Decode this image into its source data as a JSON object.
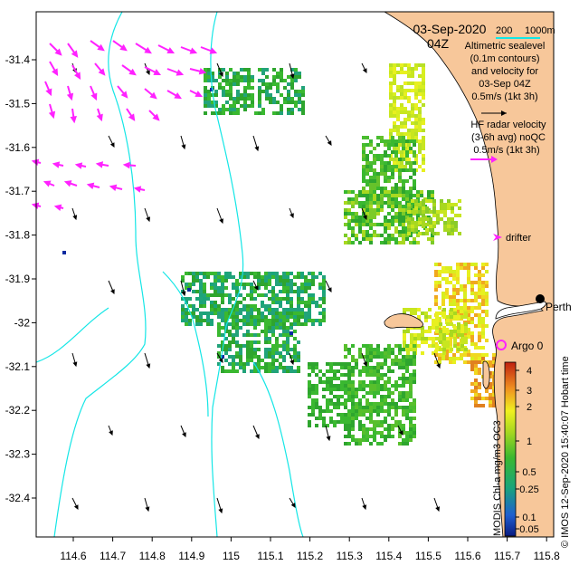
{
  "map": {
    "date": "03-Sep-2020",
    "time": "04Z",
    "bathymetry_legend": [
      "200",
      "1000m"
    ],
    "altimetry_text": [
      "Altimetric sealevel",
      "(0.1m contours)",
      "and velocity for",
      "03-Sep 04Z",
      "0.5m/s (1kt 3h)"
    ],
    "hf_radar_text": [
      "HF radar velocity",
      "(3-6h avg) noQC",
      "0.5m/s (1kt 3h)"
    ],
    "drifter_label": "drifter",
    "city_label": "Perth",
    "argo_label": "Argo 0",
    "colorbar_label": "MODIS Chl-a mg/m3 OC3",
    "credit": "© IMOS 12-Sep-2020 15:40:07 Hobart time",
    "lon_ticks": [
      "114.6",
      "114.7",
      "114.8",
      "114.9",
      "115",
      "115.1",
      "115.2",
      "115.3",
      "115.4",
      "115.5",
      "115.6",
      "115.7",
      "115.8"
    ],
    "lat_ticks": [
      "-31.4",
      "-31.5",
      "-31.6",
      "-31.7",
      "-31.8",
      "-31.9",
      "-32",
      "-32.1",
      "-32.2",
      "-32.3",
      "-32.4"
    ],
    "colorbar_ticks": [
      "4",
      "3",
      "2",
      "1",
      "0.5",
      "0.25",
      "0.1",
      "0.05"
    ],
    "colors": {
      "land": "#f7c79a",
      "bathy": "#14e6e6",
      "hf_radar": "#ff22ff",
      "argo": "#ff22ff",
      "chl_low": "#0a2aa0",
      "chl_mid": "#22a33a",
      "chl_high": "#f0f020",
      "chl_max": "#d04010"
    }
  }
}
